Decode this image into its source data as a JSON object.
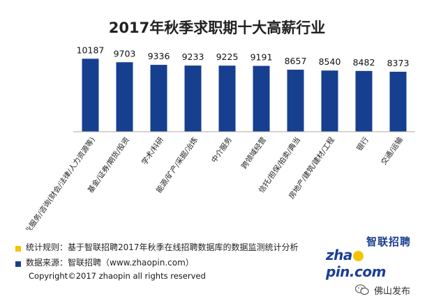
{
  "chart_data": {
    "type": "bar",
    "title": "2017年秋季求职期十大高薪行业",
    "categories": [
      "专业服务/咨询(财会/法律/人力资源等)",
      "基金/证券/期货/投资",
      "学术/科研",
      "能源/矿产/采掘/冶炼",
      "中介服务",
      "跨领域经营",
      "信托/担保/拍卖/典当",
      "房地产/建筑/建材/工程",
      "银行",
      "交通/运输"
    ],
    "values": [
      10187,
      9703,
      9336,
      9233,
      9225,
      9191,
      8657,
      8540,
      8482,
      8373
    ],
    "value_labels": [
      "10187",
      "9703",
      "9336",
      "9233",
      "9225",
      "9191",
      "8657",
      "8540",
      "8482",
      "8373"
    ],
    "ylim": [
      0,
      10800
    ],
    "bar_color": "#163f8f",
    "axis_color": "#aaaaaa",
    "grid": false,
    "legend": false
  },
  "notes": {
    "rule": "统计规则：基于智联招聘2017年秋季在线招聘数据库的数据监测统计分析",
    "rule_color": "#f5c400",
    "source": "数据来源：智联招聘（www.zhaopin.com）",
    "source_color": "#163f8f"
  },
  "copyright": "Copyright©2017 zhaopin all rights reserved",
  "logo": {
    "cn": "智联招聘",
    "en_left": "zha",
    "en_right": "pin.com"
  },
  "watermark": {
    "text": "佛山发布",
    "icon": "wechat-icon"
  }
}
